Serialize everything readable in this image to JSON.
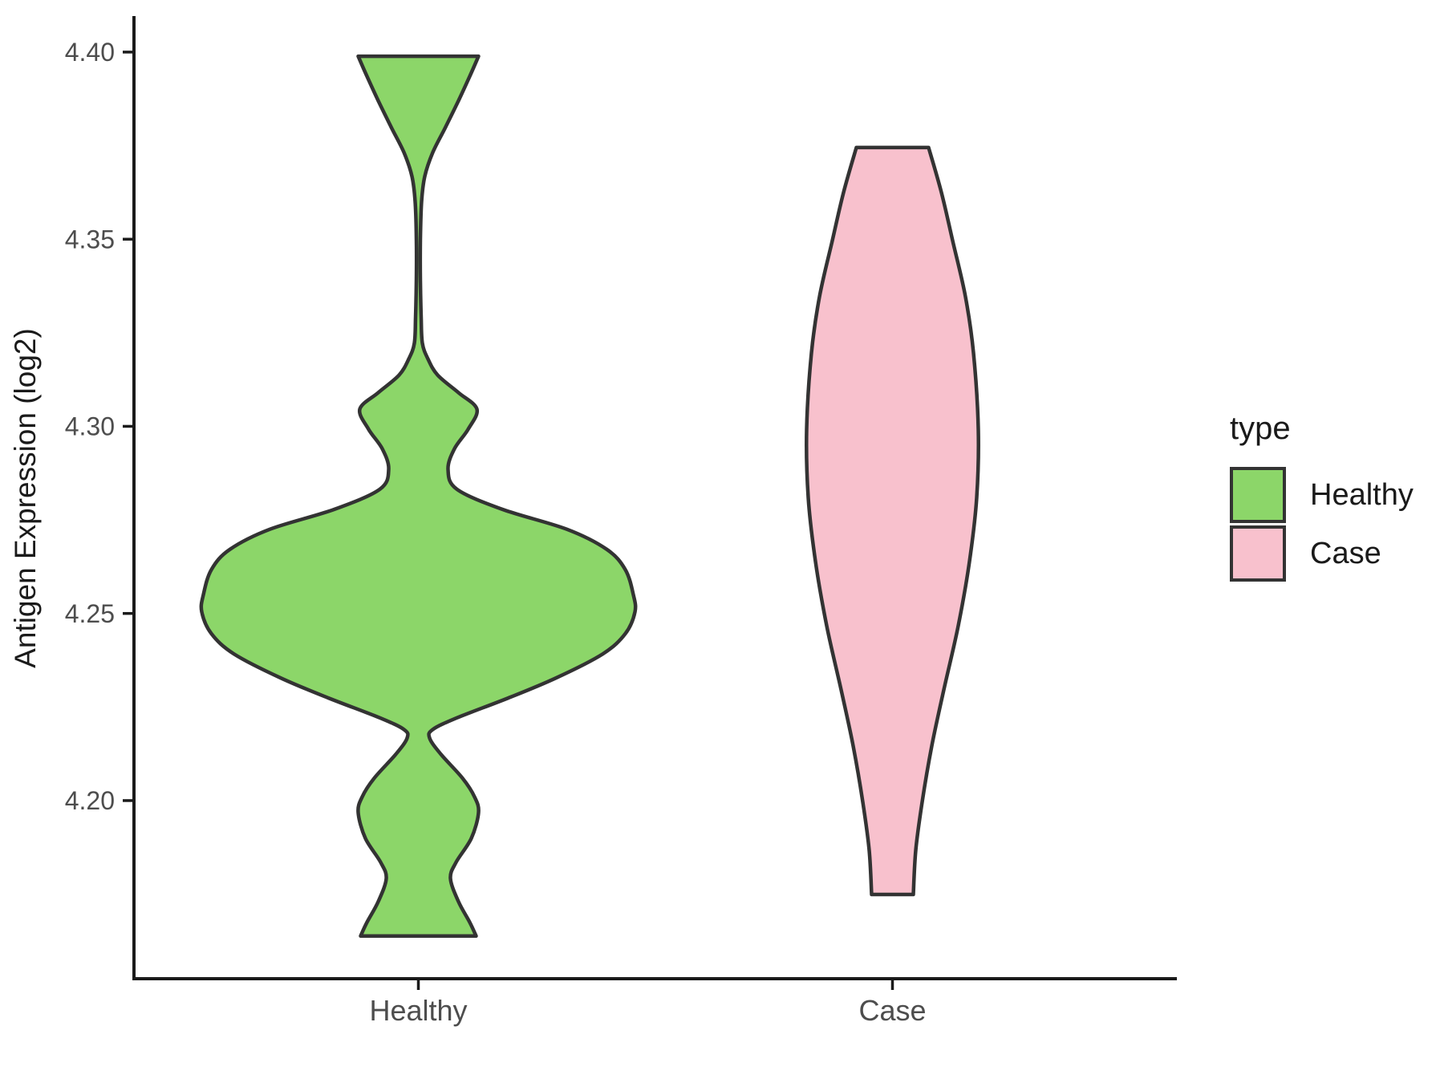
{
  "chart_data": {
    "type": "violin",
    "title": "",
    "xlabel": "",
    "ylabel": "Antigen Expression (log2)",
    "categories": [
      "Healthy",
      "Case"
    ],
    "y_ticks": [
      4.2,
      4.25,
      4.3,
      4.35,
      4.4
    ],
    "y_tick_labels": [
      "4.20",
      "4.25",
      "4.30",
      "4.35",
      "4.40"
    ],
    "ylim": [
      4.1524,
      4.4092
    ],
    "grid": "off",
    "outline_color": "#333333",
    "axis_line_color": "#1a1a1a",
    "axis_text_color": "#4D4D4D",
    "legend": {
      "title": "type",
      "position": "right",
      "items": [
        {
          "label": "Healthy",
          "color": "#8CD669"
        },
        {
          "label": "Case",
          "color": "#F8C1CD"
        }
      ]
    },
    "series": [
      {
        "name": "Healthy",
        "color": "#8CD669",
        "center_frac": 0.2727,
        "value_range": [
          4.164,
          4.399
        ],
        "profile": [
          [
            4.3989,
            75
          ],
          [
            4.3935,
            64
          ],
          [
            4.387,
            50
          ],
          [
            4.38,
            34
          ],
          [
            4.3732,
            18
          ],
          [
            4.3668,
            8
          ],
          [
            4.36,
            4
          ],
          [
            4.35,
            2.5
          ],
          [
            4.339,
            2.5
          ],
          [
            4.329,
            3.5
          ],
          [
            4.3222,
            5
          ],
          [
            4.318,
            12
          ],
          [
            4.3137,
            24
          ],
          [
            4.309,
            50
          ],
          [
            4.3046,
            73
          ],
          [
            4.2992,
            62
          ],
          [
            4.294,
            45
          ],
          [
            4.2885,
            37
          ],
          [
            4.2832,
            48
          ],
          [
            4.2778,
            105
          ],
          [
            4.2725,
            185
          ],
          [
            4.2671,
            235
          ],
          [
            4.2617,
            258
          ],
          [
            4.255,
            268
          ],
          [
            4.2504,
            270
          ],
          [
            4.2446,
            258
          ],
          [
            4.2392,
            230
          ],
          [
            4.2328,
            172
          ],
          [
            4.2274,
            112
          ],
          [
            4.2221,
            48
          ],
          [
            4.219,
            18
          ],
          [
            4.2167,
            14
          ],
          [
            4.2124,
            28
          ],
          [
            4.206,
            55
          ],
          [
            4.201,
            70
          ],
          [
            4.1968,
            75
          ],
          [
            4.1899,
            66
          ],
          [
            4.1835,
            47
          ],
          [
            4.1792,
            40
          ],
          [
            4.173,
            50
          ],
          [
            4.1675,
            64
          ],
          [
            4.1638,
            72
          ]
        ]
      },
      {
        "name": "Case",
        "color": "#F8C1CD",
        "center_frac": 0.7273,
        "value_range": [
          4.175,
          4.374
        ],
        "profile": [
          [
            4.3745,
            45
          ],
          [
            4.3625,
            61
          ],
          [
            4.3496,
            75
          ],
          [
            4.3346,
            91
          ],
          [
            4.3196,
            101
          ],
          [
            4.2992,
            107
          ],
          [
            4.281,
            105
          ],
          [
            4.2639,
            96
          ],
          [
            4.2467,
            82
          ],
          [
            4.2296,
            64
          ],
          [
            4.2146,
            49
          ],
          [
            4.1996,
            37
          ],
          [
            4.1867,
            29
          ],
          [
            4.1749,
            26
          ]
        ]
      }
    ]
  }
}
